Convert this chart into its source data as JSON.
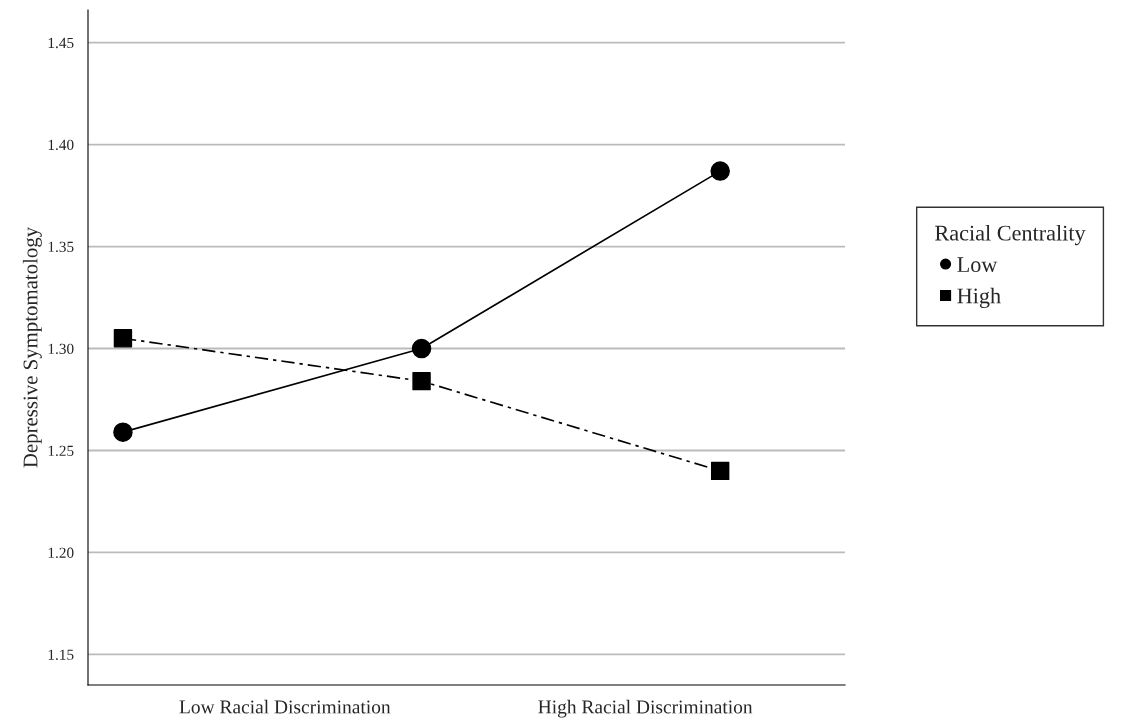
{
  "chart_data": {
    "type": "line",
    "ylabel": "Depressive Symptomatology",
    "legend_title": "Racial Centrality",
    "categories": [
      null,
      null,
      null
    ],
    "annotations": [
      "Low Racial Discrimination",
      "High Racial Discrimination"
    ],
    "ylim": [
      1.135,
      1.466
    ],
    "yticks": [
      {
        "value": 1.15,
        "label": "1.15"
      },
      {
        "value": 1.2,
        "label": "1.20"
      },
      {
        "value": 1.25,
        "label": "1.25"
      },
      {
        "value": 1.3,
        "label": "1.30"
      },
      {
        "value": 1.35,
        "label": "1.35"
      },
      {
        "value": 1.4,
        "label": "1.40"
      },
      {
        "value": 1.45,
        "label": "1.45"
      }
    ],
    "grid": "y",
    "legend": "right",
    "series": [
      {
        "name": "Low",
        "color": "#000000",
        "marker": "circle",
        "line_style": "solid",
        "values": [
          1.259,
          1.3,
          1.387
        ]
      },
      {
        "name": "High",
        "color": "#000000",
        "marker": "square",
        "line_style": "dashdot",
        "values": [
          1.305,
          1.284,
          1.24
        ]
      }
    ]
  }
}
